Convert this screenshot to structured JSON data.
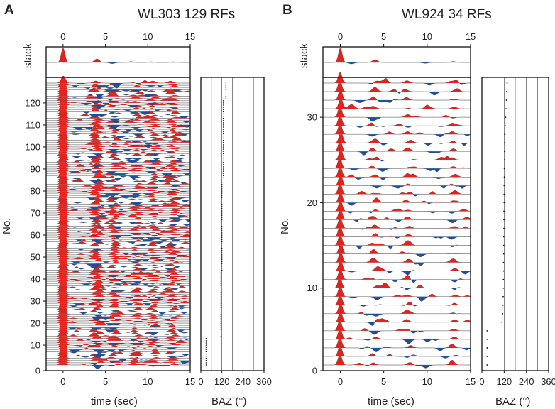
{
  "chart_data": [
    {
      "type": "receiver-function-section",
      "panel_label": "A",
      "title": "WL303 129 RFs",
      "station": "WL303",
      "rf_count": 129,
      "stack_label": "stack",
      "ylabel": "No.",
      "xlabel": "time (sec)",
      "baz_label": "BAZ (°)",
      "xlim": [
        -2,
        15
      ],
      "xticks": [
        0,
        5,
        10,
        15
      ],
      "ylim": [
        0,
        129
      ],
      "yticks": [
        0,
        10,
        20,
        30,
        40,
        50,
        60,
        70,
        80,
        90,
        100,
        110,
        120
      ],
      "baz_lim": [
        0,
        360
      ],
      "baz_ticks": [
        0,
        120,
        240,
        360
      ],
      "baz_tick_labels": [
        "0",
        "120",
        "240",
        "360"
      ],
      "stack_peaks": [
        {
          "t": 0.0,
          "amp": 1.0
        },
        {
          "t": 4.0,
          "amp": 0.25
        },
        {
          "t": 5.8,
          "amp": -0.08
        },
        {
          "t": 8.0,
          "amp": 0.06
        },
        {
          "t": 10.4,
          "amp": 0.05
        },
        {
          "t": 13.0,
          "amp": 0.05
        }
      ],
      "phase_peaks": [
        {
          "t": 0.0,
          "amp": 1.0,
          "width": 0.25
        },
        {
          "t": 4.0,
          "amp": 0.45,
          "width": 0.3
        },
        {
          "t": 6.0,
          "amp": 0.3,
          "width": 0.3
        },
        {
          "t": 8.6,
          "amp": 0.25,
          "width": 0.3
        },
        {
          "t": 10.6,
          "amp": 0.25,
          "width": 0.3
        },
        {
          "t": 13.0,
          "amp": 0.25,
          "width": 0.3
        }
      ],
      "baz_segments": [
        {
          "from": 1,
          "to": 13,
          "baz": 30
        },
        {
          "from": 14,
          "to": 43,
          "baz": 115
        },
        {
          "from": 44,
          "to": 85,
          "baz": 120
        },
        {
          "from": 86,
          "to": 121,
          "baz": 128
        },
        {
          "from": 122,
          "to": 129,
          "baz": 143
        }
      ]
    },
    {
      "type": "receiver-function-section",
      "panel_label": "B",
      "title": "WL924 34 RFs",
      "station": "WL924",
      "rf_count": 34,
      "stack_label": "stack",
      "ylabel": "No.",
      "xlabel": "time (sec)",
      "baz_label": "BAZ (°)",
      "xlim": [
        -2,
        15
      ],
      "xticks": [
        0,
        5,
        10,
        15
      ],
      "ylim": [
        0,
        34
      ],
      "yticks": [
        0,
        10,
        20,
        30
      ],
      "baz_lim": [
        0,
        360
      ],
      "baz_ticks": [
        0,
        120,
        240,
        360
      ],
      "baz_tick_labels": [
        "0",
        "120",
        "240",
        "360"
      ],
      "stack_peaks": [
        {
          "t": 0.0,
          "amp": 1.0
        },
        {
          "t": 4.0,
          "amp": 0.2
        },
        {
          "t": 1.3,
          "amp": -0.1
        },
        {
          "t": 9.8,
          "amp": -0.06
        },
        {
          "t": 13.0,
          "amp": 0.07
        }
      ],
      "phase_peaks": [
        {
          "t": 0.0,
          "amp": 1.0,
          "width": 0.22
        },
        {
          "t": 4.0,
          "amp": 0.32,
          "width": 0.3
        },
        {
          "t": 7.8,
          "amp": 0.22,
          "width": 0.3
        },
        {
          "t": 13.0,
          "amp": 0.22,
          "width": 0.3
        }
      ],
      "baz_points": [
        28,
        28,
        28,
        28,
        28,
        108,
        112,
        114,
        115,
        116,
        116,
        117,
        117,
        118,
        118,
        118,
        119,
        119,
        119,
        120,
        120,
        120,
        121,
        121,
        122,
        122,
        123,
        124,
        126,
        128,
        130,
        132,
        134,
        136
      ]
    }
  ]
}
